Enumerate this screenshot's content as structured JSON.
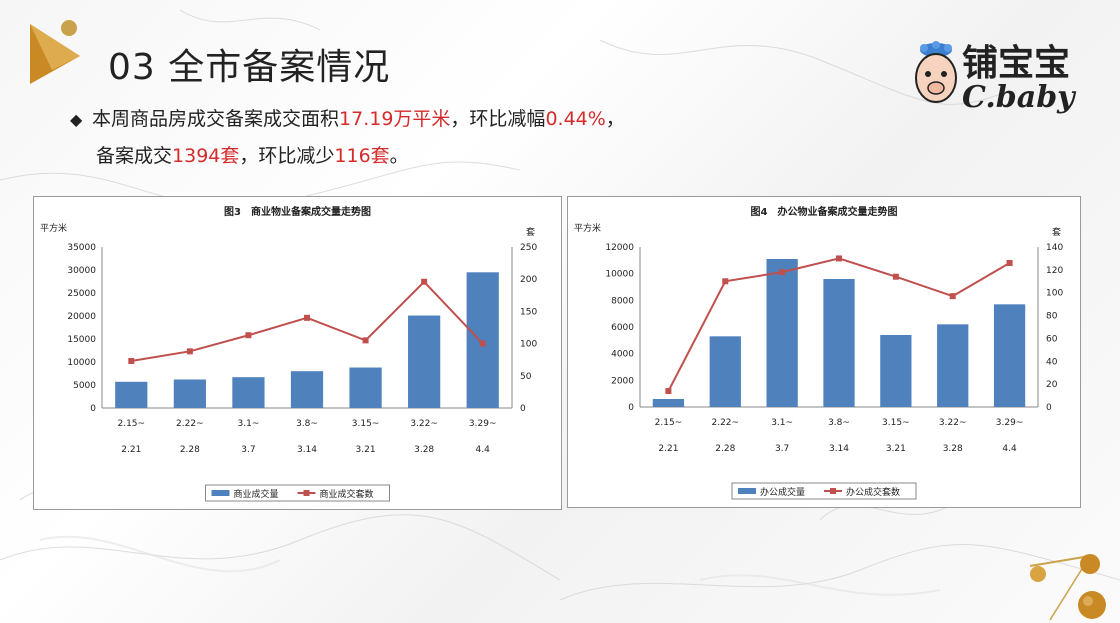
{
  "slide": {
    "title": "03 全市备案情况",
    "logo_name": "铺宝宝",
    "logo_en": "C.baby"
  },
  "summary": {
    "bullet": "◆",
    "line1_a": "本周商品房成交备案成交面积",
    "line1_b": "17.19万平米",
    "line1_c": "，环比减幅",
    "line1_d": "0.44%",
    "line1_e": "，",
    "line2_a": "备案成交",
    "line2_b": "1394套",
    "line2_c": "，环比减少",
    "line2_d": "116套",
    "line2_e": "。",
    "highlight_color": "#d62b2b"
  },
  "chart_data": [
    {
      "type": "bar",
      "title": "图3　商业物业备案成交量走势图",
      "ylabel": "平方米",
      "ylabel_right": "套",
      "categories_line1": [
        "2.15~",
        "2.22~",
        "3.1~",
        "3.8~",
        "3.15~",
        "3.22~",
        "3.29~"
      ],
      "categories_line2": [
        "2.21",
        "2.28",
        "3.7",
        "3.14",
        "3.21",
        "3.28",
        "4.4"
      ],
      "yticks": [
        "0",
        "5000",
        "10000",
        "15000",
        "20000",
        "25000",
        "30000",
        "35000"
      ],
      "yticks_right": [
        "0",
        "50",
        "100",
        "150",
        "200",
        "250"
      ],
      "ylim": [
        0,
        35000
      ],
      "ylim_right": [
        0,
        250
      ],
      "series": [
        {
          "name": "商业成交量",
          "kind": "bar",
          "axis": "left",
          "color": "#4f81bd",
          "values": [
            5700,
            6200,
            6700,
            8000,
            8800,
            20100,
            29500
          ]
        },
        {
          "name": "商业成交套数",
          "kind": "line",
          "axis": "right",
          "color": "#c0504d",
          "values": [
            73,
            88,
            113,
            140,
            105,
            196,
            100
          ]
        }
      ],
      "legend": "bottom"
    },
    {
      "type": "bar",
      "title": "图4　办公物业备案成交量走势图",
      "ylabel": "平方米",
      "ylabel_right": "套",
      "categories_line1": [
        "2.15~",
        "2.22~",
        "3.1~",
        "3.8~",
        "3.15~",
        "3.22~",
        "3.29~"
      ],
      "categories_line2": [
        "2.21",
        "2.28",
        "3.7",
        "3.14",
        "3.21",
        "3.28",
        "4.4"
      ],
      "yticks": [
        "0",
        "2000",
        "4000",
        "6000",
        "8000",
        "10000",
        "12000"
      ],
      "yticks_right": [
        "0",
        "20",
        "40",
        "60",
        "80",
        "100",
        "120",
        "140"
      ],
      "ylim": [
        0,
        12000
      ],
      "ylim_right": [
        0,
        140
      ],
      "series": [
        {
          "name": "办公成交量",
          "kind": "bar",
          "axis": "left",
          "color": "#4f81bd",
          "values": [
            600,
            5300,
            11100,
            9600,
            5400,
            6200,
            7700
          ]
        },
        {
          "name": "办公成交套数",
          "kind": "line",
          "axis": "right",
          "color": "#c0504d",
          "values": [
            14,
            110,
            118,
            130,
            114,
            97,
            126
          ]
        }
      ],
      "legend": "bottom"
    }
  ]
}
